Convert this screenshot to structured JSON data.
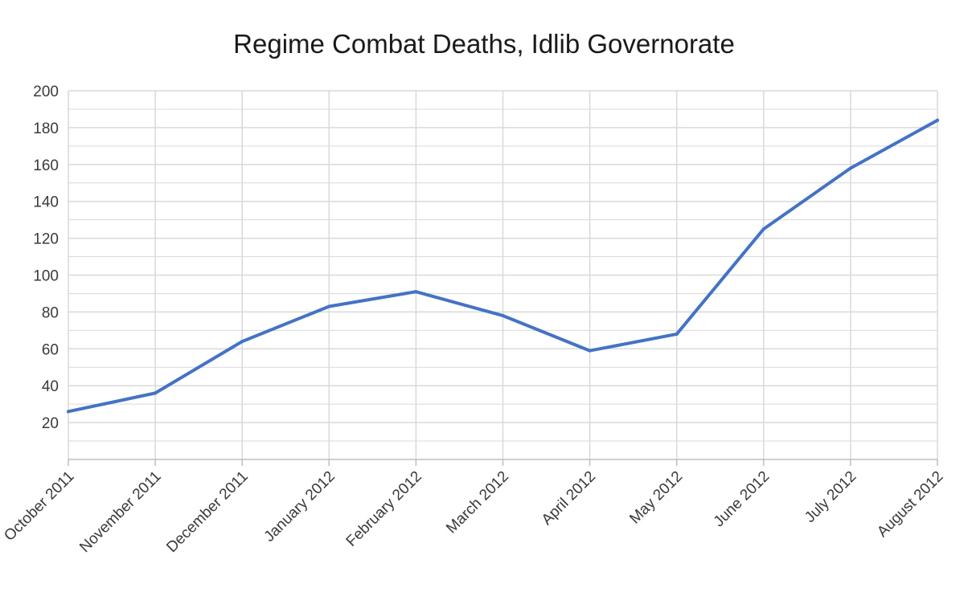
{
  "chart_data": {
    "type": "line",
    "title": "Regime Combat Deaths, Idlib Governorate",
    "xlabel": "",
    "ylabel": "",
    "categories": [
      "October 2011",
      "November 2011",
      "December 2011",
      "January 2012",
      "February 2012",
      "March 2012",
      "April 2012",
      "May 2012",
      "June 2012",
      "July 2012",
      "August 2012"
    ],
    "series": [
      {
        "values": [
          26,
          36,
          64,
          83,
          91,
          78,
          59,
          68,
          125,
          158,
          184
        ]
      }
    ],
    "ylim": [
      0,
      200
    ],
    "yticks": [
      20,
      40,
      60,
      80,
      100,
      120,
      140,
      160,
      180,
      200
    ],
    "grid": true,
    "legend": "none",
    "colors": {
      "line": "#4472c4",
      "grid": "#d9d9d9",
      "axis": "#bfbfbf"
    }
  }
}
